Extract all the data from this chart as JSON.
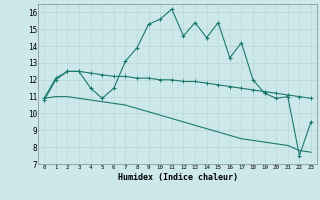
{
  "xlabel": "Humidex (Indice chaleur)",
  "line1": [
    10.8,
    12.0,
    12.5,
    12.5,
    11.5,
    10.9,
    11.5,
    13.1,
    13.9,
    15.3,
    15.6,
    16.2,
    14.6,
    15.4,
    14.5,
    15.4,
    13.3,
    14.2,
    12.0,
    11.2,
    10.9,
    11.0,
    7.5,
    9.5
  ],
  "line2": [
    10.9,
    12.1,
    12.5,
    12.5,
    12.4,
    12.3,
    12.2,
    12.2,
    12.1,
    12.1,
    12.0,
    12.0,
    11.9,
    11.9,
    11.8,
    11.7,
    11.6,
    11.5,
    11.4,
    11.3,
    11.2,
    11.1,
    11.0,
    10.9
  ],
  "line3": [
    10.9,
    11.0,
    11.0,
    10.9,
    10.8,
    10.7,
    10.6,
    10.5,
    10.3,
    10.1,
    9.9,
    9.7,
    9.5,
    9.3,
    9.1,
    8.9,
    8.7,
    8.5,
    8.4,
    8.3,
    8.2,
    8.1,
    7.8,
    7.7
  ],
  "color": "#1a7a6e",
  "bg_color": "#cde8ea",
  "grid_color": "#b8d8da",
  "ylim": [
    7,
    16.5
  ],
  "yticks": [
    7,
    8,
    9,
    10,
    11,
    12,
    13,
    14,
    15,
    16
  ],
  "xlim": [
    -0.5,
    23.5
  ],
  "xticks": [
    0,
    1,
    2,
    3,
    4,
    5,
    6,
    7,
    8,
    9,
    10,
    11,
    12,
    13,
    14,
    15,
    16,
    17,
    18,
    19,
    20,
    21,
    22,
    23
  ]
}
